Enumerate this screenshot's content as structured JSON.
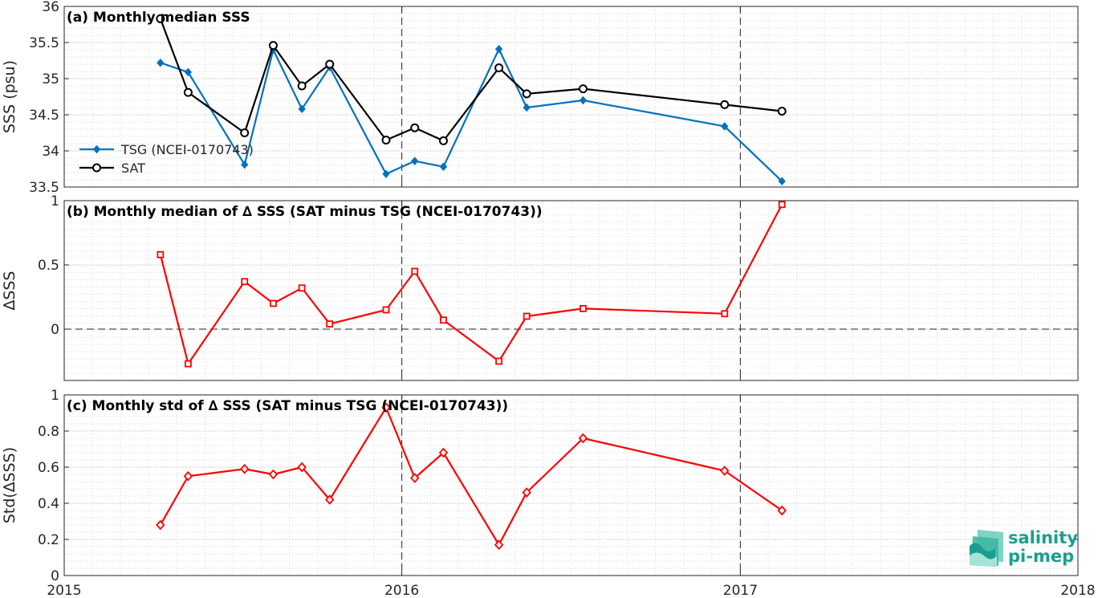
{
  "colors": {
    "tsg": "#0072BD",
    "sat": "#000000",
    "delta": "#FF0000",
    "logo": "#1a9e8f"
  },
  "logo": {
    "line1": "salinity",
    "line2": "pi-mep"
  },
  "x_axis": {
    "range": [
      "2015-01-01",
      "2018-01-01"
    ],
    "tick_dates": [
      "2015-01-01",
      "2016-01-01",
      "2017-01-01",
      "2018-01-01"
    ],
    "tick_labels": [
      "2015",
      "2016",
      "2017",
      "2018"
    ],
    "year_markers": [
      "2016-01-01",
      "2017-01-01"
    ]
  },
  "chart_data": [
    {
      "type": "line",
      "title": "(a) Monthly median SSS",
      "ylabel": "SSS (psu)",
      "ylim": [
        33.5,
        36
      ],
      "yticks": [
        33.5,
        34,
        34.5,
        35,
        35.5,
        36
      ],
      "ytick_labels": [
        "33.5",
        "34",
        "34.5",
        "35",
        "35.5",
        "36"
      ],
      "grid": true,
      "legend_position": "left",
      "x": [
        "2015-04-15",
        "2015-05-15",
        "2015-07-15",
        "2015-08-15",
        "2015-09-15",
        "2015-10-15",
        "2015-12-15",
        "2016-01-15",
        "2016-02-15",
        "2016-04-15",
        "2016-05-15",
        "2016-07-15",
        "2016-12-15",
        "2017-02-15"
      ],
      "series": [
        {
          "name": "TSG (NCEI-0170743)",
          "marker": "diamond-filled",
          "values": [
            35.22,
            35.09,
            33.81,
            35.4,
            34.58,
            35.16,
            33.68,
            33.86,
            33.78,
            35.41,
            34.6,
            34.7,
            34.34,
            33.58
          ]
        },
        {
          "name": "SAT",
          "marker": "circle-open",
          "values": [
            35.83,
            34.81,
            34.25,
            35.46,
            34.9,
            35.2,
            34.15,
            34.32,
            34.14,
            35.15,
            34.79,
            34.86,
            34.64,
            34.55
          ]
        }
      ]
    },
    {
      "type": "line",
      "title": "(b) Monthly median of ∆ SSS (SAT minus TSG (NCEI-0170743))",
      "ylabel": "∆SSS",
      "ylim": [
        -0.4,
        1
      ],
      "yticks": [
        0,
        0.5,
        1
      ],
      "ytick_labels": [
        "0",
        "0.5",
        "1"
      ],
      "grid": true,
      "zero_line": true,
      "x": [
        "2015-04-15",
        "2015-05-15",
        "2015-07-15",
        "2015-08-15",
        "2015-09-15",
        "2015-10-15",
        "2015-12-15",
        "2016-01-15",
        "2016-02-15",
        "2016-04-15",
        "2016-05-15",
        "2016-07-15",
        "2016-12-15",
        "2017-02-15"
      ],
      "series": [
        {
          "marker": "square-open",
          "values": [
            0.58,
            -0.27,
            0.37,
            0.2,
            0.32,
            0.04,
            0.15,
            0.45,
            0.07,
            -0.25,
            0.1,
            0.16,
            0.12,
            0.97
          ]
        }
      ]
    },
    {
      "type": "line",
      "title": "(c) Monthly std of ∆ SSS (SAT minus TSG (NCEI-0170743))",
      "ylabel": "Std(∆SSS)",
      "ylim": [
        0,
        1
      ],
      "yticks": [
        0,
        0.2,
        0.4,
        0.6,
        0.8,
        1
      ],
      "ytick_labels": [
        "0",
        "0.2",
        "0.4",
        "0.6",
        "0.8",
        "1"
      ],
      "grid": true,
      "x": [
        "2015-04-15",
        "2015-05-15",
        "2015-07-15",
        "2015-08-15",
        "2015-09-15",
        "2015-10-15",
        "2015-12-15",
        "2016-01-15",
        "2016-02-15",
        "2016-04-15",
        "2016-05-15",
        "2016-07-15",
        "2016-12-15",
        "2017-02-15"
      ],
      "series": [
        {
          "marker": "diamond-open",
          "values": [
            0.28,
            0.55,
            0.59,
            0.56,
            0.6,
            0.42,
            0.93,
            0.54,
            0.68,
            0.17,
            0.46,
            0.76,
            0.58,
            0.36
          ]
        }
      ]
    }
  ]
}
